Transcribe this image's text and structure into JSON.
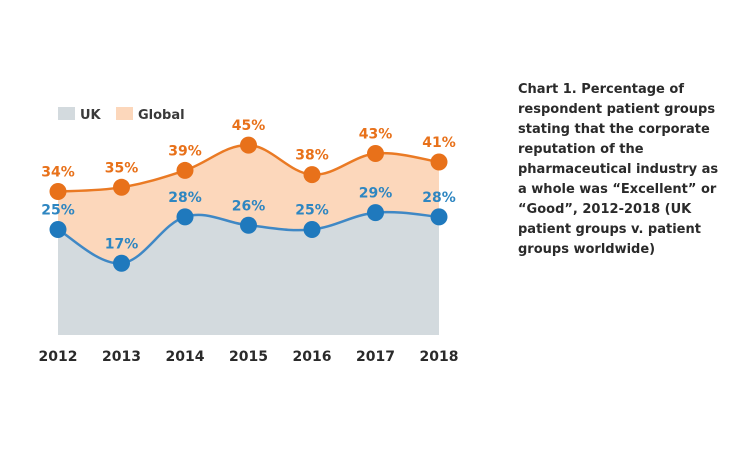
{
  "caption": "Chart 1. Percentage of\nrespondent patient groups\nstating that the corporate\nreputation of the\npharmaceutical industry as\na whole was “Excellent” or\n“Good”, 2012-2018 (UK\npatient groups v. patient\ngroups worldwide)",
  "chart_data": {
    "type": "area",
    "categories": [
      "2012",
      "2013",
      "2014",
      "2015",
      "2016",
      "2017",
      "2018"
    ],
    "series": [
      {
        "name": "UK",
        "values": [
          25,
          17,
          28,
          26,
          25,
          29,
          28
        ],
        "labels": [
          "25%",
          "17%",
          "28%",
          "26%",
          "25%",
          "29%",
          "28%"
        ],
        "fill_color": "#d3dade",
        "line_color": "#3f88c5",
        "marker_color": "#1f79bd",
        "label_color": "#2e86c1"
      },
      {
        "name": "Global",
        "values": [
          34,
          35,
          39,
          45,
          38,
          43,
          41
        ],
        "labels": [
          "34%",
          "35%",
          "39%",
          "45%",
          "38%",
          "43%",
          "41%"
        ],
        "fill_color": "#fcd7bb",
        "line_color": "#ea7a24",
        "marker_color": "#e8711a",
        "label_color": "#e8711a"
      }
    ],
    "legend": "top-left",
    "grid": false,
    "ylim": [
      0,
      50
    ]
  }
}
